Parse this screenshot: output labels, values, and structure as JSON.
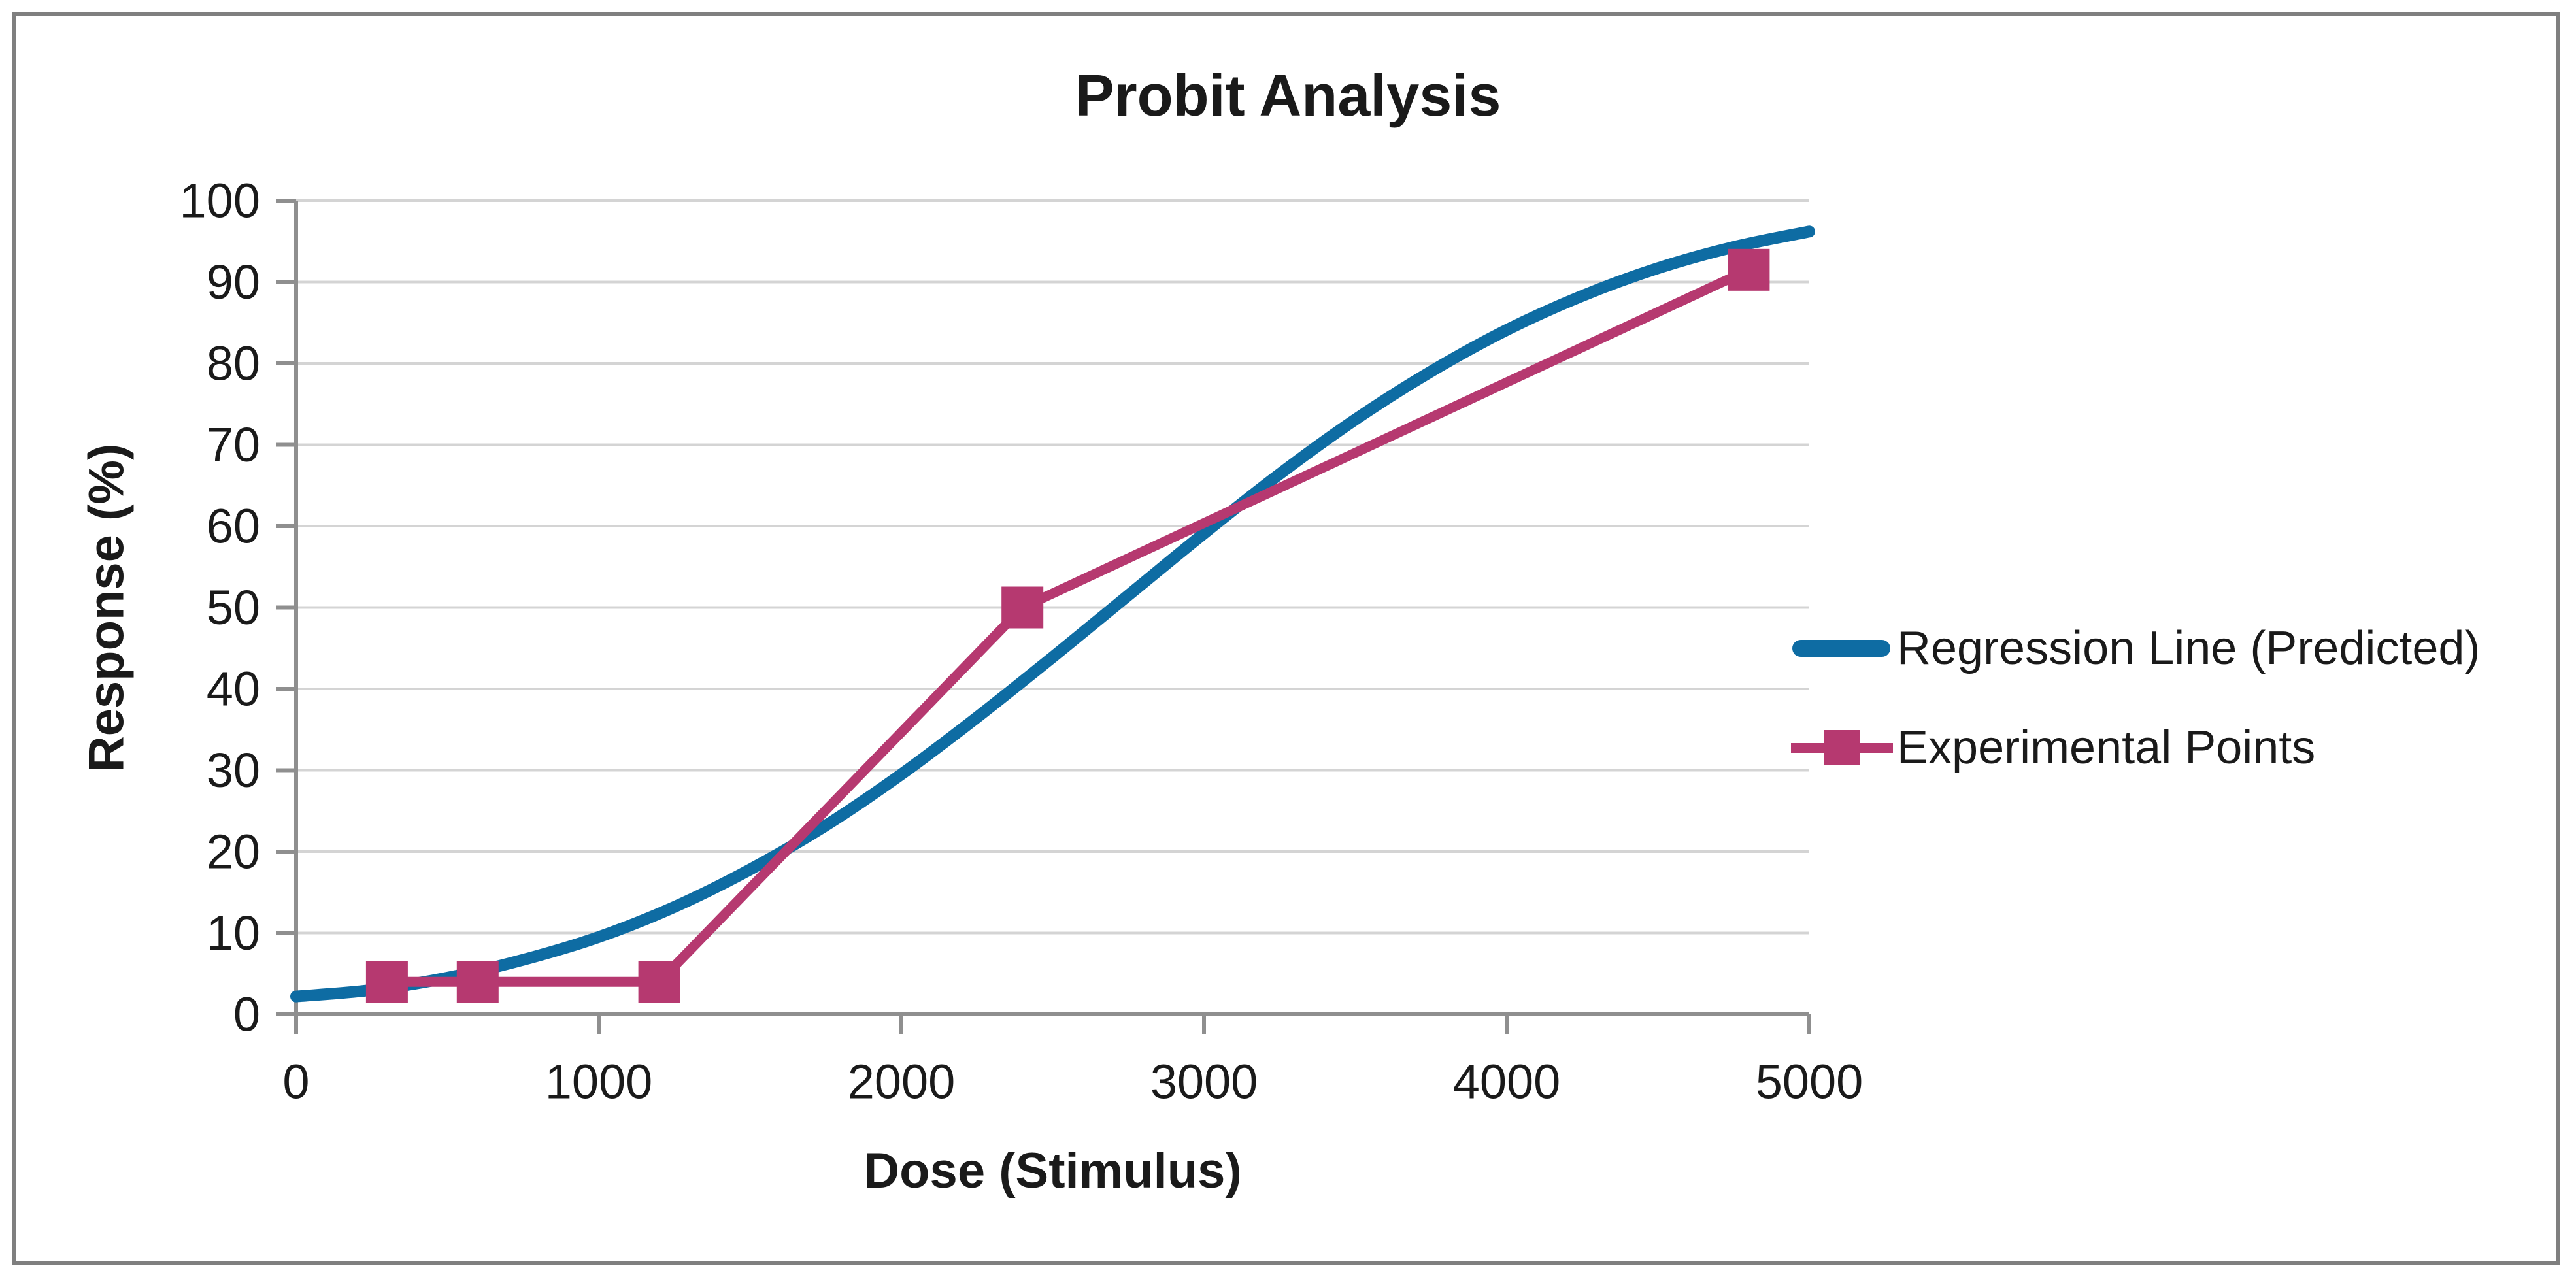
{
  "chart_data": {
    "type": "line",
    "title": "Probit Analysis",
    "xlabel": "Dose (Stimulus)",
    "ylabel": "Response (%)",
    "xlim": [
      0,
      5000
    ],
    "ylim": [
      0,
      100
    ],
    "x_ticks": [
      0,
      1000,
      2000,
      3000,
      4000,
      5000
    ],
    "y_ticks": [
      0,
      10,
      20,
      30,
      40,
      50,
      60,
      70,
      80,
      90,
      100
    ],
    "grid": "horizontal-only",
    "legend_position": "right",
    "series": [
      {
        "name": "Regression Line (Predicted)",
        "type": "smooth-line",
        "color": "#0E6CA3",
        "points": [
          [
            0,
            2.2
          ],
          [
            250,
            3.0
          ],
          [
            500,
            4.5
          ],
          [
            750,
            6.7
          ],
          [
            1000,
            9.5
          ],
          [
            1250,
            13.2
          ],
          [
            1500,
            17.8
          ],
          [
            1750,
            23.2
          ],
          [
            2000,
            29.5
          ],
          [
            2250,
            36.5
          ],
          [
            2500,
            43.9
          ],
          [
            2750,
            51.5
          ],
          [
            3000,
            59.1
          ],
          [
            3250,
            66.4
          ],
          [
            3500,
            73.1
          ],
          [
            3750,
            79.0
          ],
          [
            4000,
            84.1
          ],
          [
            4250,
            88.3
          ],
          [
            4500,
            91.7
          ],
          [
            4750,
            94.3
          ],
          [
            5000,
            96.2
          ]
        ]
      },
      {
        "name": "Experimental Points",
        "type": "line-with-markers",
        "marker": "square",
        "color": "#B63970",
        "points": [
          [
            300,
            4
          ],
          [
            600,
            4
          ],
          [
            1200,
            4
          ],
          [
            2400,
            50
          ],
          [
            4800,
            91.5
          ]
        ]
      }
    ],
    "colors": {
      "regression_line": "#0E6CA3",
      "experimental_points": "#B63970",
      "axis_line": "#8f8f8f",
      "gridline": "#d4d4d4",
      "frame_border": "#7f7f7f",
      "text": "#1a1a1a"
    }
  }
}
